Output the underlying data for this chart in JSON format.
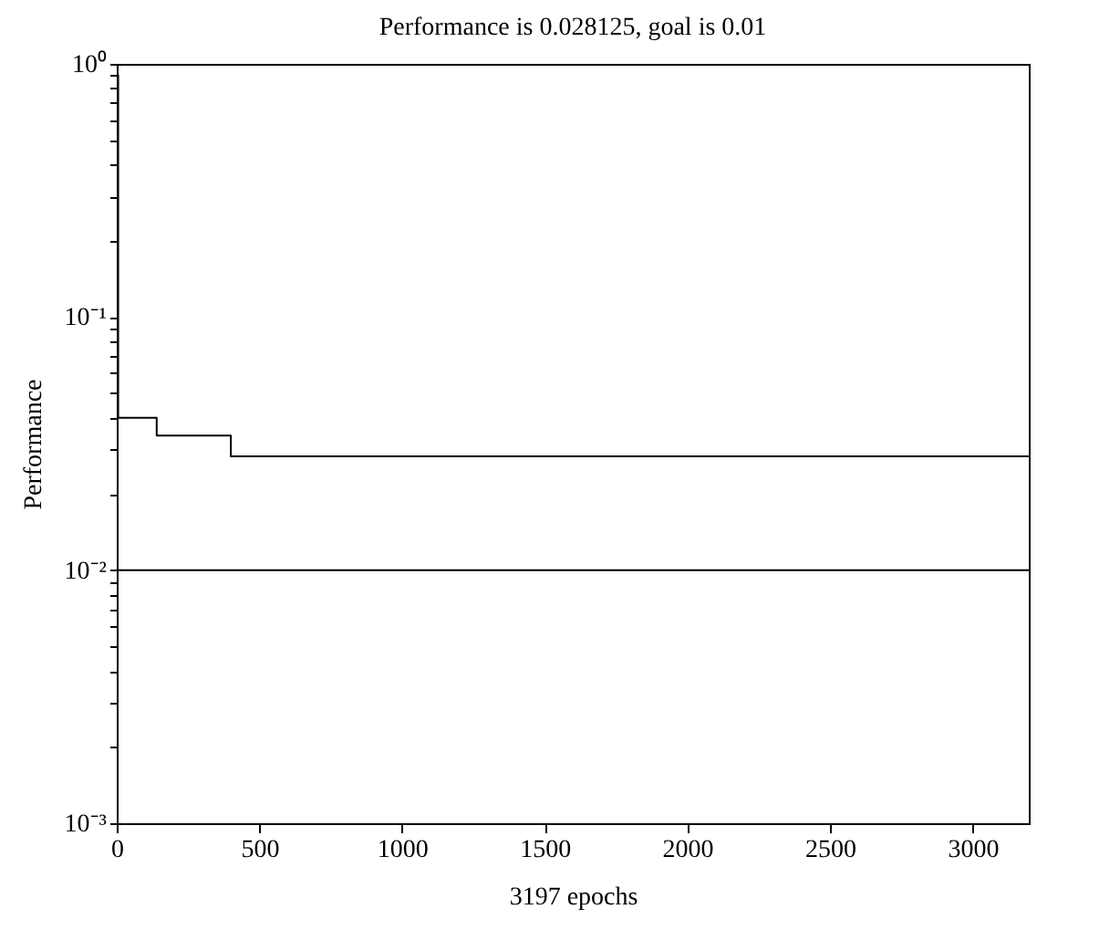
{
  "chart_data": {
    "type": "step",
    "title": "Performance is 0.028125, goal is 0.01",
    "xlabel": "3197 epochs",
    "ylabel": "Performance",
    "x": [
      0,
      5,
      140,
      400,
      3197
    ],
    "series": [
      {
        "color": "#000000",
        "values": [
          0.9,
          0.04,
          0.034,
          0.028125,
          0.028125
        ]
      }
    ],
    "log": "y",
    "xlim": [
      0,
      3197
    ],
    "xticks": [
      0,
      500,
      1000,
      1500,
      2000,
      2500,
      3000
    ],
    "ylim": [
      0.001,
      1
    ],
    "yticks": [
      {
        "value": 0.001,
        "label": "10⁻³"
      },
      {
        "value": 0.002,
        "label": null
      },
      {
        "value": 0.003,
        "label": null
      },
      {
        "value": 0.004,
        "label": null
      },
      {
        "value": 0.005,
        "label": null
      },
      {
        "value": 0.006,
        "label": null
      },
      {
        "value": 0.007,
        "label": null
      },
      {
        "value": 0.008,
        "label": null
      },
      {
        "value": 0.009,
        "label": null
      },
      {
        "value": 0.01,
        "label": "10⁻²"
      },
      {
        "value": 0.02,
        "label": null
      },
      {
        "value": 0.03,
        "label": null
      },
      {
        "value": 0.04,
        "label": null
      },
      {
        "value": 0.05,
        "label": null
      },
      {
        "value": 0.06,
        "label": null
      },
      {
        "value": 0.07,
        "label": null
      },
      {
        "value": 0.08,
        "label": null
      },
      {
        "value": 0.09,
        "label": null
      },
      {
        "value": 0.1,
        "label": "10⁻¹"
      },
      {
        "value": 0.2,
        "label": null
      },
      {
        "value": 0.3,
        "label": null
      },
      {
        "value": 0.4,
        "label": null
      },
      {
        "value": 0.5,
        "label": null
      },
      {
        "value": 0.6,
        "label": null
      },
      {
        "value": 0.7,
        "label": null
      },
      {
        "value": 0.8,
        "label": null
      },
      {
        "value": 0.9,
        "label": null
      },
      {
        "value": 1,
        "label": "10⁰"
      }
    ],
    "ref_lines": [
      {
        "axis": "y",
        "value": 0.01,
        "color": "#000000",
        "line_style": "solid"
      }
    ],
    "grid": false,
    "marker": "none",
    "line_style": "solid"
  }
}
